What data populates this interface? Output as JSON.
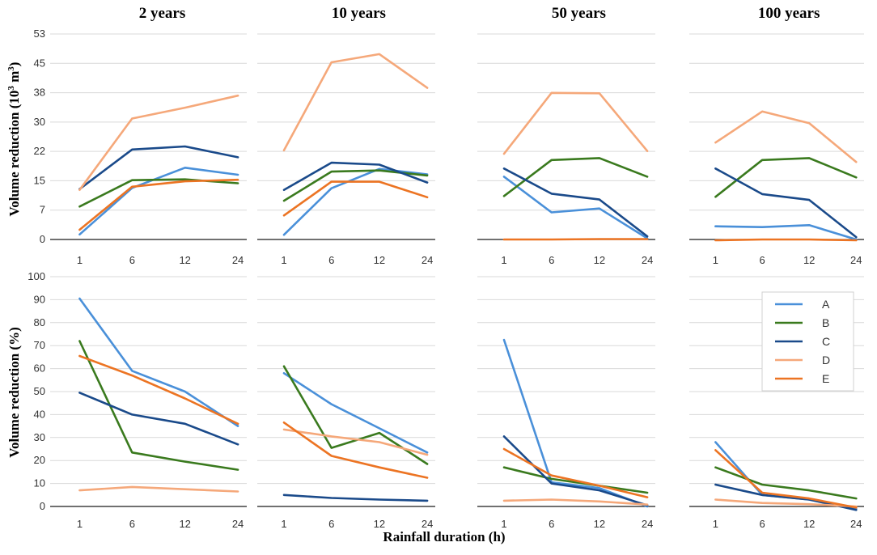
{
  "figure": {
    "xlabel": "Rainfall duration (h)",
    "ylabel_top": "Volume reduction (10",
    "ylabel_top_sup": "3",
    "ylabel_top_unit": " m",
    "ylabel_top_sup2": "3",
    "ylabel_top_close": ")",
    "ylabel_bottom": "Volume reduction (%)"
  },
  "legend": [
    {
      "name": "A",
      "color": "#4a90d9"
    },
    {
      "name": "B",
      "color": "#3a7a1e"
    },
    {
      "name": "C",
      "color": "#1a4a8a"
    },
    {
      "name": "D",
      "color": "#f5a87a"
    },
    {
      "name": "E",
      "color": "#ec7423"
    }
  ],
  "chart_data": [
    {
      "type": "line",
      "row": "top",
      "title": "2 years",
      "categories": [
        "1",
        "6",
        "12",
        "24"
      ],
      "ylim": [
        0,
        53
      ],
      "yticks": [
        "0",
        "7",
        "15",
        "22",
        "30",
        "38",
        "45",
        "53"
      ],
      "series": [
        {
          "name": "A",
          "values": [
            1.3,
            13.3,
            18.5,
            16.7
          ]
        },
        {
          "name": "B",
          "values": [
            8.5,
            15.3,
            15.5,
            14.5
          ]
        },
        {
          "name": "C",
          "values": [
            13.0,
            23.2,
            24.0,
            21.2
          ]
        },
        {
          "name": "D",
          "values": [
            12.8,
            31.2,
            34.0,
            37.1
          ]
        },
        {
          "name": "E",
          "values": [
            2.5,
            13.6,
            15.0,
            15.4
          ]
        }
      ]
    },
    {
      "type": "line",
      "row": "top",
      "title": "10 years",
      "categories": [
        "1",
        "6",
        "12",
        "24"
      ],
      "ylim": [
        0,
        53
      ],
      "series": [
        {
          "name": "A",
          "values": [
            1.2,
            13.2,
            18.2,
            16.8
          ]
        },
        {
          "name": "B",
          "values": [
            10.0,
            17.5,
            17.8,
            16.5
          ]
        },
        {
          "name": "C",
          "values": [
            12.8,
            19.8,
            19.3,
            14.7
          ]
        },
        {
          "name": "D",
          "values": [
            23.0,
            45.7,
            47.8,
            39.1
          ]
        },
        {
          "name": "E",
          "values": [
            6.2,
            14.9,
            14.9,
            10.9
          ]
        }
      ]
    },
    {
      "type": "line",
      "row": "top",
      "title": "50 years",
      "categories": [
        "1",
        "6",
        "12",
        "24"
      ],
      "ylim": [
        0,
        53
      ],
      "series": [
        {
          "name": "A",
          "values": [
            16.2,
            7.0,
            8.0,
            0.3
          ]
        },
        {
          "name": "B",
          "values": [
            11.2,
            20.5,
            21.0,
            16.2
          ]
        },
        {
          "name": "C",
          "values": [
            18.3,
            11.8,
            10.3,
            0.8
          ]
        },
        {
          "name": "D",
          "values": [
            22.1,
            37.8,
            37.7,
            22.8
          ]
        },
        {
          "name": "E",
          "values": [
            0.0,
            0.0,
            0.1,
            0.1
          ]
        }
      ]
    },
    {
      "type": "line",
      "row": "top",
      "title": "100 years",
      "categories": [
        "1",
        "6",
        "12",
        "24"
      ],
      "ylim": [
        0,
        53
      ],
      "series": [
        {
          "name": "A",
          "values": [
            3.4,
            3.2,
            3.7,
            0.0
          ]
        },
        {
          "name": "B",
          "values": [
            11.0,
            20.5,
            21.0,
            16.0
          ]
        },
        {
          "name": "C",
          "values": [
            18.3,
            11.7,
            10.2,
            0.6
          ]
        },
        {
          "name": "D",
          "values": [
            25.0,
            33.0,
            30.0,
            20.0
          ]
        },
        {
          "name": "E",
          "values": [
            -0.2,
            0.0,
            0.0,
            -0.2
          ]
        }
      ]
    },
    {
      "type": "line",
      "row": "bottom",
      "title": "",
      "categories": [
        "1",
        "6",
        "12",
        "24"
      ],
      "ylim": [
        0,
        100
      ],
      "yticks": [
        "0",
        "10",
        "20",
        "30",
        "40",
        "50",
        "60",
        "70",
        "80",
        "90",
        "100"
      ],
      "series": [
        {
          "name": "A",
          "values": [
            90.5,
            59.0,
            50.0,
            35.0
          ]
        },
        {
          "name": "B",
          "values": [
            72.0,
            23.5,
            19.5,
            16.0
          ]
        },
        {
          "name": "C",
          "values": [
            49.5,
            40.0,
            36.0,
            27.0
          ]
        },
        {
          "name": "D",
          "values": [
            7.0,
            8.5,
            7.5,
            6.5
          ]
        },
        {
          "name": "E",
          "values": [
            65.5,
            57.0,
            47.0,
            36.0
          ]
        }
      ]
    },
    {
      "type": "line",
      "row": "bottom",
      "title": "",
      "categories": [
        "1",
        "6",
        "12",
        "24"
      ],
      "ylim": [
        0,
        100
      ],
      "series": [
        {
          "name": "A",
          "values": [
            58.0,
            44.5,
            34.0,
            23.5
          ]
        },
        {
          "name": "B",
          "values": [
            61.0,
            25.5,
            32.0,
            18.5
          ]
        },
        {
          "name": "C",
          "values": [
            5.0,
            3.7,
            3.0,
            2.5
          ]
        },
        {
          "name": "D",
          "values": [
            33.5,
            30.5,
            28.0,
            22.5
          ]
        },
        {
          "name": "E",
          "values": [
            36.5,
            22.0,
            17.0,
            12.5
          ]
        }
      ]
    },
    {
      "type": "line",
      "row": "bottom",
      "title": "",
      "categories": [
        "1",
        "6",
        "12",
        "24"
      ],
      "ylim": [
        0,
        100
      ],
      "series": [
        {
          "name": "A",
          "values": [
            72.5,
            10.5,
            8.0,
            0.0
          ]
        },
        {
          "name": "B",
          "values": [
            17.0,
            12.0,
            9.0,
            6.0
          ]
        },
        {
          "name": "C",
          "values": [
            30.5,
            10.0,
            7.0,
            0.5
          ]
        },
        {
          "name": "D",
          "values": [
            2.5,
            3.0,
            2.2,
            0.8
          ]
        },
        {
          "name": "E",
          "values": [
            25.0,
            13.5,
            9.0,
            4.0
          ]
        }
      ]
    },
    {
      "type": "line",
      "row": "bottom",
      "title": "",
      "categories": [
        "1",
        "6",
        "12",
        "24"
      ],
      "ylim": [
        0,
        100
      ],
      "series": [
        {
          "name": "A",
          "values": [
            28.0,
            5.0,
            3.0,
            -1.0
          ]
        },
        {
          "name": "B",
          "values": [
            17.0,
            9.5,
            7.0,
            3.5
          ]
        },
        {
          "name": "C",
          "values": [
            9.5,
            5.0,
            3.0,
            -1.5
          ]
        },
        {
          "name": "D",
          "values": [
            3.0,
            1.5,
            1.0,
            0.0
          ]
        },
        {
          "name": "E",
          "values": [
            24.5,
            6.0,
            3.5,
            -0.5
          ]
        }
      ]
    }
  ]
}
